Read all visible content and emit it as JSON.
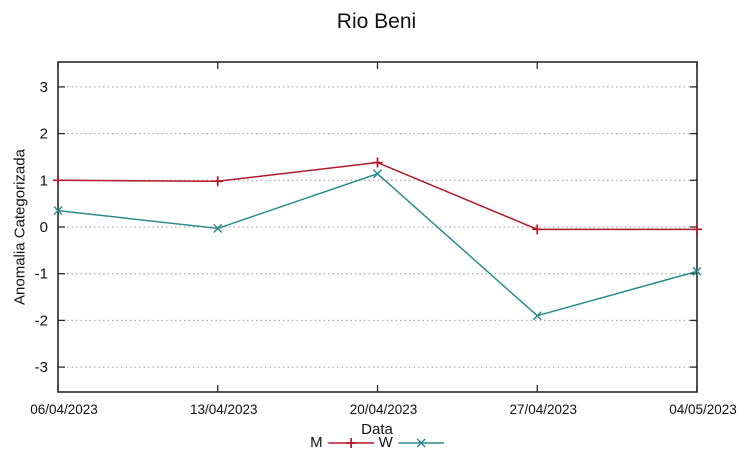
{
  "page": {
    "background": "#ffffff"
  },
  "chart_data": {
    "type": "line",
    "title": "Rio Beni",
    "xlabel": "Data",
    "ylabel": "Anomalia Categorizada",
    "x_tick_labels": [
      "06/04/2023",
      "13/04/2023",
      "20/04/2023",
      "27/04/2023",
      "04/05/2023"
    ],
    "y_ticks": [
      -3,
      -2,
      -1,
      0,
      1,
      2,
      3
    ],
    "ylim": [
      -3.53,
      3.53
    ],
    "grid": "horizontal-dotted",
    "grid_color": "#999999",
    "border_color": "#2a2a2a",
    "legend_position": "bottom-center",
    "series": [
      {
        "name": "M",
        "color": "#b2182b",
        "marker": "plus",
        "values": [
          1.0,
          0.98,
          1.38,
          -0.05,
          -0.05
        ]
      },
      {
        "name": "W",
        "color": "#2e8b8b",
        "marker": "cross",
        "values": [
          0.35,
          -0.03,
          1.14,
          -1.9,
          -0.95
        ]
      }
    ]
  }
}
